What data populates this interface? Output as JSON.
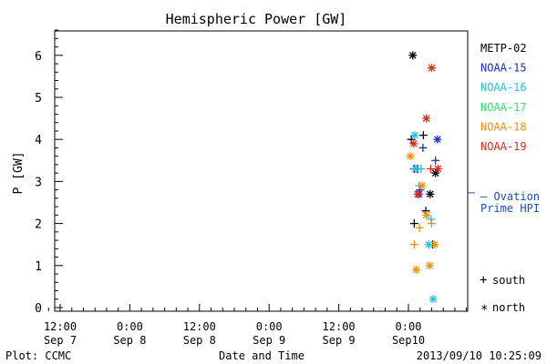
{
  "chart_data": {
    "type": "scatter",
    "title": "Hemispheric Power [GW]",
    "xlabel": "Date and Time",
    "ylabel": "P [GW]",
    "ylim": [
      0,
      6.6
    ],
    "y_ticks": [
      "0",
      "1",
      "2",
      "3",
      "4",
      "5",
      "6"
    ],
    "x_ticks": [
      {
        "l1": "12:00",
        "l2": "Sep 7"
      },
      {
        "l1": "0:00",
        "l2": "Sep 8"
      },
      {
        "l1": "12:00",
        "l2": "Sep 8"
      },
      {
        "l1": "0:00",
        "l2": "Sep 9"
      },
      {
        "l1": "12:00",
        "l2": "Sep 9"
      },
      {
        "l1": "0:00",
        "l2": "Sep10"
      }
    ],
    "legend_position": "right",
    "series": [
      {
        "name": "METP-02",
        "color": "#000000",
        "points": [
          {
            "x": "Sep10 00:45",
            "y": 6.0,
            "m": "north"
          },
          {
            "x": "Sep10 00:30",
            "y": 4.0,
            "m": "south"
          },
          {
            "x": "Sep10 02:35",
            "y": 4.1,
            "m": "south"
          },
          {
            "x": "Sep10 01:35",
            "y": 3.3,
            "m": "south"
          },
          {
            "x": "Sep10 04:40",
            "y": 3.2,
            "m": "north"
          },
          {
            "x": "Sep10 03:45",
            "y": 2.7,
            "m": "north"
          },
          {
            "x": "Sep10 03:00",
            "y": 2.3,
            "m": "south"
          },
          {
            "x": "Sep10 01:00",
            "y": 2.0,
            "m": "south"
          },
          {
            "x": "Sep10 04:10",
            "y": 1.5,
            "m": "south"
          }
        ]
      },
      {
        "name": "NOAA-15",
        "color": "#1a2dcc",
        "points": [
          {
            "x": "Sep10 05:00",
            "y": 4.0,
            "m": "north"
          },
          {
            "x": "Sep10 02:30",
            "y": 3.8,
            "m": "south"
          },
          {
            "x": "Sep10 01:00",
            "y": 3.3,
            "m": "south"
          },
          {
            "x": "Sep10 04:40",
            "y": 3.5,
            "m": "south"
          },
          {
            "x": "Sep10 02:00",
            "y": 2.8,
            "m": "south"
          },
          {
            "x": "Sep10 01:50",
            "y": 2.7,
            "m": "north"
          }
        ]
      },
      {
        "name": "NOAA-16",
        "color": "#22c0e6",
        "points": [
          {
            "x": "Sep10 01:05",
            "y": 4.1,
            "m": "north"
          },
          {
            "x": "Sep10 01:15",
            "y": 3.3,
            "m": "north"
          },
          {
            "x": "Sep10 02:10",
            "y": 3.3,
            "m": "south"
          },
          {
            "x": "Sep10 01:50",
            "y": 2.9,
            "m": "south"
          },
          {
            "x": "Sep10 03:55",
            "y": 2.1,
            "m": "south"
          },
          {
            "x": "Sep10 03:30",
            "y": 1.5,
            "m": "north"
          },
          {
            "x": "Sep10 04:15",
            "y": 0.2,
            "m": "north"
          }
        ]
      },
      {
        "name": "NOAA-17",
        "color": "#33e066",
        "points": []
      },
      {
        "name": "NOAA-18",
        "color": "#f0900a",
        "points": [
          {
            "x": "Sep10 00:20",
            "y": 3.6,
            "m": "north"
          },
          {
            "x": "Sep10 02:20",
            "y": 2.9,
            "m": "north"
          },
          {
            "x": "Sep10 03:05",
            "y": 2.2,
            "m": "north"
          },
          {
            "x": "Sep10 01:55",
            "y": 1.9,
            "m": "south"
          },
          {
            "x": "Sep10 04:00",
            "y": 2.0,
            "m": "south"
          },
          {
            "x": "Sep10 01:00",
            "y": 1.5,
            "m": "south"
          },
          {
            "x": "Sep10 04:30",
            "y": 1.5,
            "m": "north"
          },
          {
            "x": "Sep10 03:40",
            "y": 1.0,
            "m": "north"
          },
          {
            "x": "Sep10 01:20",
            "y": 0.9,
            "m": "north"
          }
        ]
      },
      {
        "name": "NOAA-19",
        "color": "#dd2a1a",
        "points": [
          {
            "x": "Sep10 04:00",
            "y": 5.7,
            "m": "north"
          },
          {
            "x": "Sep10 03:05",
            "y": 4.5,
            "m": "north"
          },
          {
            "x": "Sep10 00:55",
            "y": 3.9,
            "m": "north"
          },
          {
            "x": "Sep10 03:50",
            "y": 3.3,
            "m": "south"
          },
          {
            "x": "Sep10 05:05",
            "y": 3.3,
            "m": "north"
          },
          {
            "x": "Sep10 01:35",
            "y": 2.7,
            "m": "north"
          }
        ]
      }
    ],
    "ovation": {
      "value": 2.73,
      "label_line1": "— Ovation",
      "label_line2": "Prime HPI",
      "color": "#1a4fb0"
    },
    "marker_legend": {
      "south_symbol": "+",
      "south_label": "south",
      "north_symbol": "*",
      "north_label": "north"
    }
  },
  "footer": {
    "left": "Plot: CCMC",
    "center": "Date and Time",
    "right": "2013/09/10 10:25:09"
  }
}
